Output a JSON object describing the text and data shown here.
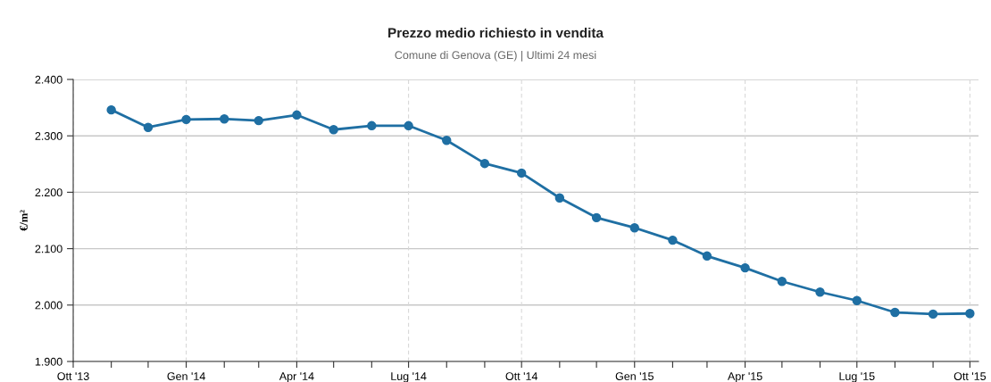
{
  "chart_data": {
    "type": "line",
    "title": "Prezzo medio richiesto in vendita",
    "subtitle": "Comune di Genova (GE) | Ultimi 24 mesi",
    "ylabel": "€/m²",
    "x": [
      "2013-11",
      "2013-12",
      "2014-01",
      "2014-02",
      "2014-03",
      "2014-04",
      "2014-05",
      "2014-06",
      "2014-07",
      "2014-08",
      "2014-09",
      "2014-10",
      "2014-11",
      "2014-12",
      "2015-01",
      "2015-02",
      "2015-03",
      "2015-04",
      "2015-05",
      "2015-06",
      "2015-07",
      "2015-08",
      "2015-09",
      "2015-10"
    ],
    "series": [
      {
        "color": "#1f6fa3",
        "values": [
          2346,
          2315,
          2329,
          2330,
          2327,
          2337,
          2311,
          2318,
          2318,
          2292,
          2251,
          2234,
          2190,
          2155,
          2137,
          2115,
          2087,
          2066,
          2042,
          2023,
          2008,
          1987,
          1984,
          1985
        ]
      }
    ],
    "xlim": [
      "2013-10",
      "2015-10-08"
    ],
    "xticks": [
      {
        "value": "2013-10",
        "label": "Ott '13"
      },
      {
        "value": "2013-11",
        "label": null
      },
      {
        "value": "2013-12",
        "label": null
      },
      {
        "value": "2014-01",
        "label": "Gen '14"
      },
      {
        "value": "2014-02",
        "label": null
      },
      {
        "value": "2014-03",
        "label": null
      },
      {
        "value": "2014-04",
        "label": "Apr '14"
      },
      {
        "value": "2014-05",
        "label": null
      },
      {
        "value": "2014-06",
        "label": null
      },
      {
        "value": "2014-07",
        "label": "Lug '14"
      },
      {
        "value": "2014-08",
        "label": null
      },
      {
        "value": "2014-09",
        "label": null
      },
      {
        "value": "2014-10",
        "label": "Ott '14"
      },
      {
        "value": "2014-11",
        "label": null
      },
      {
        "value": "2014-12",
        "label": null
      },
      {
        "value": "2015-01",
        "label": "Gen '15"
      },
      {
        "value": "2015-02",
        "label": null
      },
      {
        "value": "2015-03",
        "label": null
      },
      {
        "value": "2015-04",
        "label": "Apr '15"
      },
      {
        "value": "2015-05",
        "label": null
      },
      {
        "value": "2015-06",
        "label": null
      },
      {
        "value": "2015-07",
        "label": "Lug '15"
      },
      {
        "value": "2015-08",
        "label": null
      },
      {
        "value": "2015-09",
        "label": null
      },
      {
        "value": "2015-10",
        "label": "Ott '15"
      }
    ],
    "ylim": [
      1900,
      2400
    ],
    "yticks": [
      {
        "value": 1900,
        "label": "1.900"
      },
      {
        "value": 2000,
        "label": "2.000"
      },
      {
        "value": 2100,
        "label": "2.100"
      },
      {
        "value": 2200,
        "label": "2.200"
      },
      {
        "value": 2300,
        "label": "2.300"
      },
      {
        "value": 2400,
        "label": "2.400"
      }
    ],
    "grid": true,
    "marker": "circle",
    "line_style": "solid"
  }
}
